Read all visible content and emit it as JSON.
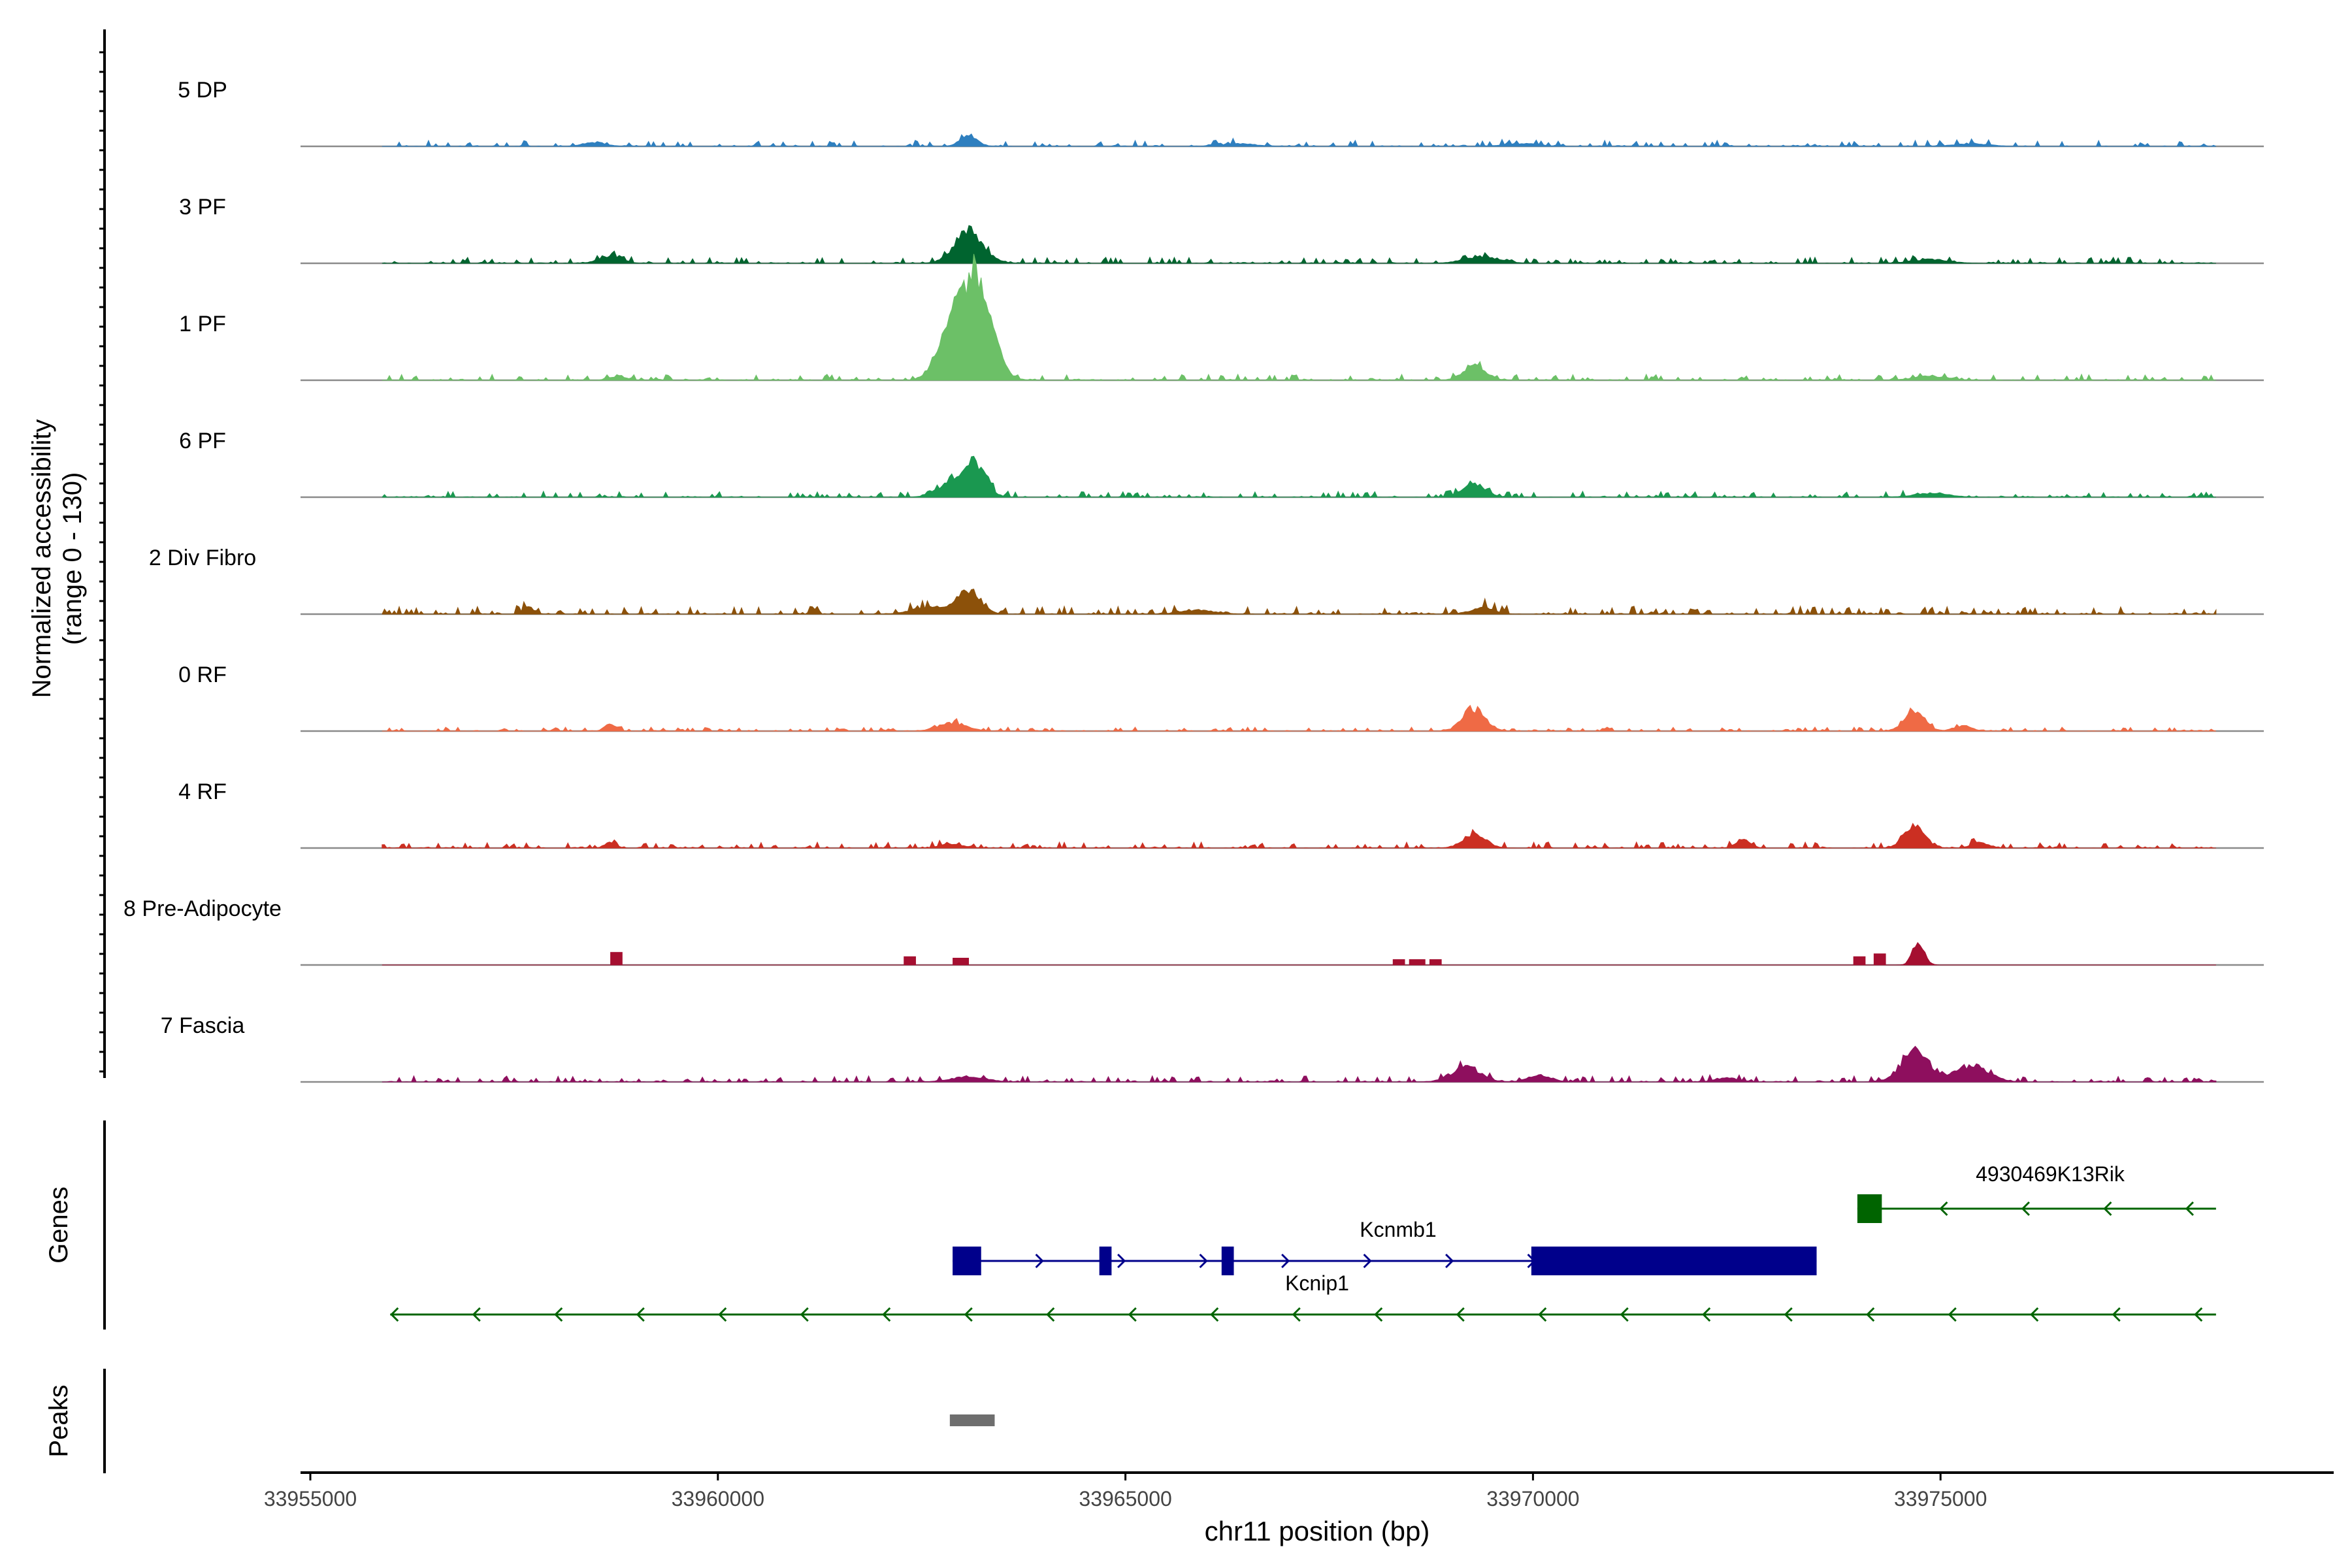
{
  "chart_data": {
    "type": "area",
    "x_axis": {
      "label": "chr11 position (bp)",
      "range": [
        33955000,
        33979500
      ],
      "ticks": [
        33955000,
        33960000,
        33965000,
        33970000,
        33975000
      ],
      "tick_labels": [
        "33955000",
        "33960000",
        "33965000",
        "33970000",
        "33975000"
      ]
    },
    "y_axis": {
      "label_line1": "Normalized accessibility",
      "label_line2": "(range 0 - 130)",
      "range": [
        0,
        130
      ]
    },
    "track_start": 33955000,
    "track_end": 33979500,
    "tracks": [
      {
        "name": "5 DP",
        "color": "#2E7FBF",
        "noise": 3,
        "noise_start": 33956000,
        "noise_end": 33978500,
        "peaks": [
          [
            33963200,
            8,
            150
          ],
          [
            33958600,
            3,
            200
          ],
          [
            33966500,
            2,
            300
          ],
          [
            33970000,
            2,
            300
          ],
          [
            33975500,
            2,
            300
          ]
        ]
      },
      {
        "name": "3 PF",
        "color": "#00642F",
        "noise": 3,
        "noise_start": 33956000,
        "noise_end": 33978500,
        "peaks": [
          [
            33963200,
            24,
            250
          ],
          [
            33958800,
            5,
            200
          ],
          [
            33969500,
            5,
            300
          ],
          [
            33975000,
            3,
            300
          ]
        ]
      },
      {
        "name": "1 PF",
        "color": "#6CC067",
        "noise": 3,
        "noise_start": 33956000,
        "noise_end": 33978500,
        "peaks": [
          [
            33963250,
            82,
            280
          ],
          [
            33962900,
            20,
            200
          ],
          [
            33969400,
            10,
            200
          ],
          [
            33958900,
            3,
            150
          ],
          [
            33975000,
            3,
            300
          ]
        ]
      },
      {
        "name": "6 PF",
        "color": "#1A9850",
        "noise": 3,
        "noise_start": 33956000,
        "noise_end": 33978500,
        "peaks": [
          [
            33963250,
            28,
            200
          ],
          [
            33962900,
            8,
            200
          ],
          [
            33969400,
            10,
            200
          ],
          [
            33975000,
            3,
            300
          ]
        ]
      },
      {
        "name": "2 Div Fibro",
        "color": "#8C510A",
        "noise": 4,
        "noise_start": 33956000,
        "noise_end": 33978500,
        "peaks": [
          [
            33963200,
            18,
            200
          ],
          [
            33962700,
            5,
            300
          ],
          [
            33969500,
            5,
            200
          ],
          [
            33957800,
            5,
            100
          ],
          [
            33966000,
            3,
            300
          ]
        ]
      },
      {
        "name": "0 RF",
        "color": "#EF6A45",
        "noise": 2,
        "noise_start": 33956000,
        "noise_end": 33978500,
        "peaks": [
          [
            33969400,
            16,
            200
          ],
          [
            33974800,
            14,
            180
          ],
          [
            33963000,
            6,
            250
          ],
          [
            33958800,
            5,
            100
          ],
          [
            33975400,
            4,
            150
          ]
        ]
      },
      {
        "name": "4 RF",
        "color": "#CB2F22",
        "noise": 3,
        "noise_start": 33956000,
        "noise_end": 33978500,
        "peaks": [
          [
            33974800,
            16,
            180
          ],
          [
            33969400,
            10,
            200
          ],
          [
            33972700,
            7,
            120
          ],
          [
            33958800,
            4,
            100
          ],
          [
            33963000,
            3,
            200
          ],
          [
            33975600,
            4,
            150
          ]
        ]
      },
      {
        "name": "8 Pre-Adipocyte",
        "color": "#A50F30",
        "noise": 0,
        "noise_start": 33956000,
        "noise_end": 33978500,
        "blocks": [
          [
            33958800,
            33958950,
            9
          ],
          [
            33962400,
            33962550,
            6
          ],
          [
            33963000,
            33963200,
            5
          ],
          [
            33968400,
            33968550,
            4
          ],
          [
            33968600,
            33968800,
            4
          ],
          [
            33968850,
            33969000,
            4
          ],
          [
            33974050,
            33974200,
            6
          ],
          [
            33974300,
            33974450,
            8
          ]
        ],
        "peaks": [
          [
            33974850,
            18,
            100
          ]
        ]
      },
      {
        "name": "7 Fascia",
        "color": "#8E0F5E",
        "noise": 3,
        "noise_start": 33956000,
        "noise_end": 33978500,
        "peaks": [
          [
            33974800,
            24,
            230
          ],
          [
            33975500,
            12,
            300
          ],
          [
            33969300,
            11,
            250
          ],
          [
            33963200,
            4,
            300
          ],
          [
            33970200,
            5,
            200
          ],
          [
            33972500,
            3,
            200
          ]
        ]
      }
    ],
    "genes_label": "Genes",
    "peaks_label": "Peaks",
    "genes": [
      {
        "name": "4930469K13Rik",
        "color": "#006400",
        "strand": "-",
        "start": 33974100,
        "end": 33978500,
        "row": 0,
        "exons": [
          [
            33974100,
            33974400
          ]
        ]
      },
      {
        "name": "Kcnmb1",
        "color": "#00008B",
        "strand": "+",
        "start": 33963000,
        "end": 33973600,
        "row": 1,
        "exons": [
          [
            33963000,
            33963350
          ],
          [
            33964800,
            33964950
          ],
          [
            33966300,
            33966450
          ],
          [
            33970100,
            33973600
          ]
        ]
      },
      {
        "name": "Kcnip1",
        "color": "#006400",
        "strand": "-",
        "start": 33956100,
        "end": 33978500,
        "row": 2,
        "exons": []
      }
    ],
    "peaks": [
      [
        33962950,
        33963500
      ]
    ]
  }
}
